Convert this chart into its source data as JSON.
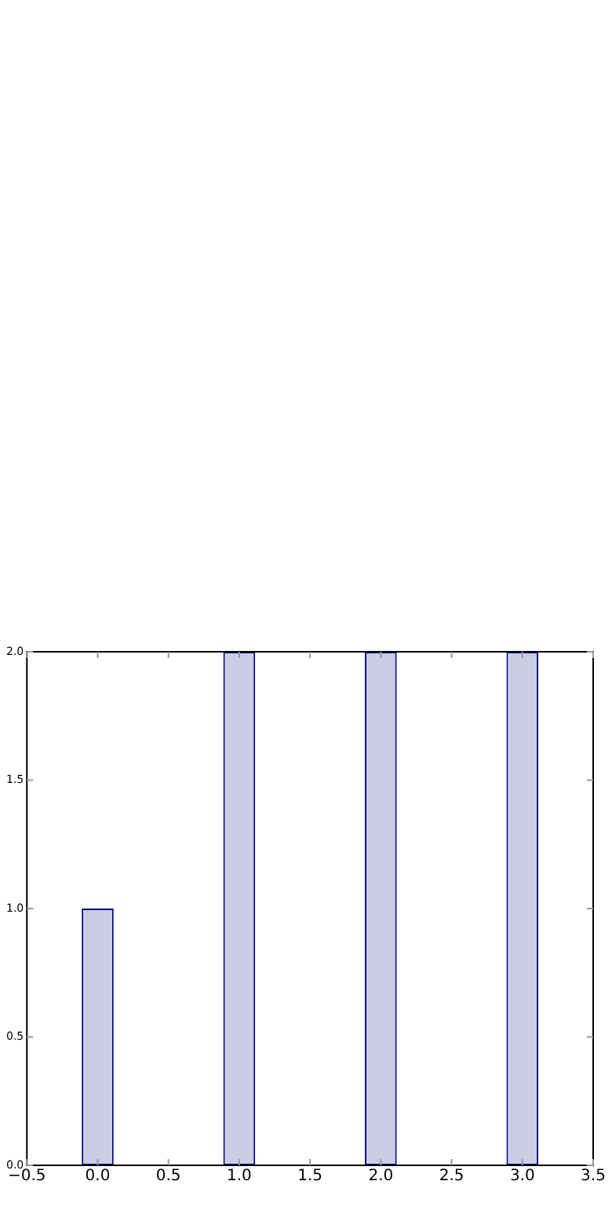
{
  "chart_data": {
    "type": "bar",
    "x": [
      0,
      1,
      2,
      3
    ],
    "values": [
      1,
      2,
      2,
      2
    ],
    "color": "#cccce5",
    "xlim": [
      -0.5,
      3.5
    ],
    "xticks": [
      {
        "value": -0.5,
        "label": "−0.5"
      },
      {
        "value": 0,
        "label": "0.0"
      },
      {
        "value": 0.5,
        "label": "0.5"
      },
      {
        "value": 1,
        "label": "1.0"
      },
      {
        "value": 1.5,
        "label": "1.5"
      },
      {
        "value": 2,
        "label": "2.0"
      },
      {
        "value": 2.5,
        "label": "2.5"
      },
      {
        "value": 3,
        "label": "3.0"
      },
      {
        "value": 3.5,
        "label": "3.5"
      }
    ],
    "ylim": [
      0,
      2
    ],
    "yticks": [
      {
        "value": 0,
        "label": "0.0"
      },
      {
        "value": 0.5,
        "label": "0.5"
      },
      {
        "value": 1,
        "label": "1.0"
      },
      {
        "value": 1.5,
        "label": "1.5"
      },
      {
        "value": 2,
        "label": "2.0"
      }
    ],
    "grid": false,
    "legend": false
  }
}
